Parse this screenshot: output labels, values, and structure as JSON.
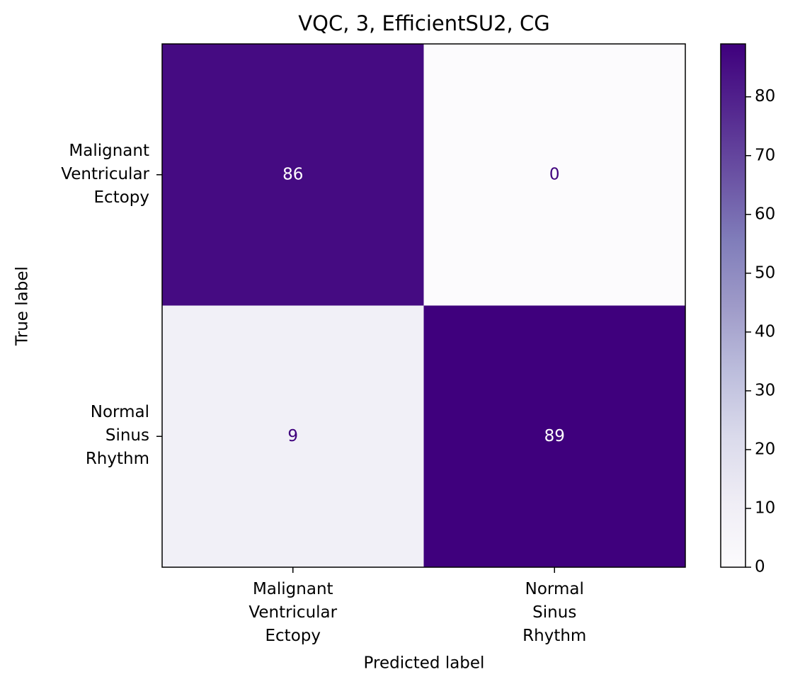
{
  "chart_data": {
    "type": "heatmap",
    "title": "VQC, 3, EfficientSU2, CG",
    "xlabel": "Predicted label",
    "ylabel": "True label",
    "x_categories": [
      "Malignant\nVentricular\nEctopy",
      "Normal\nSinus\nRhythm"
    ],
    "y_categories": [
      "Malignant\nVentricular\nEctopy",
      "Normal\nSinus\nRhythm"
    ],
    "values": [
      [
        86,
        0
      ],
      [
        9,
        89
      ]
    ],
    "colormap": "Purples",
    "zlim": [
      0,
      89
    ],
    "zticks": [
      0,
      10,
      20,
      30,
      40,
      50,
      60,
      70,
      80
    ]
  }
}
